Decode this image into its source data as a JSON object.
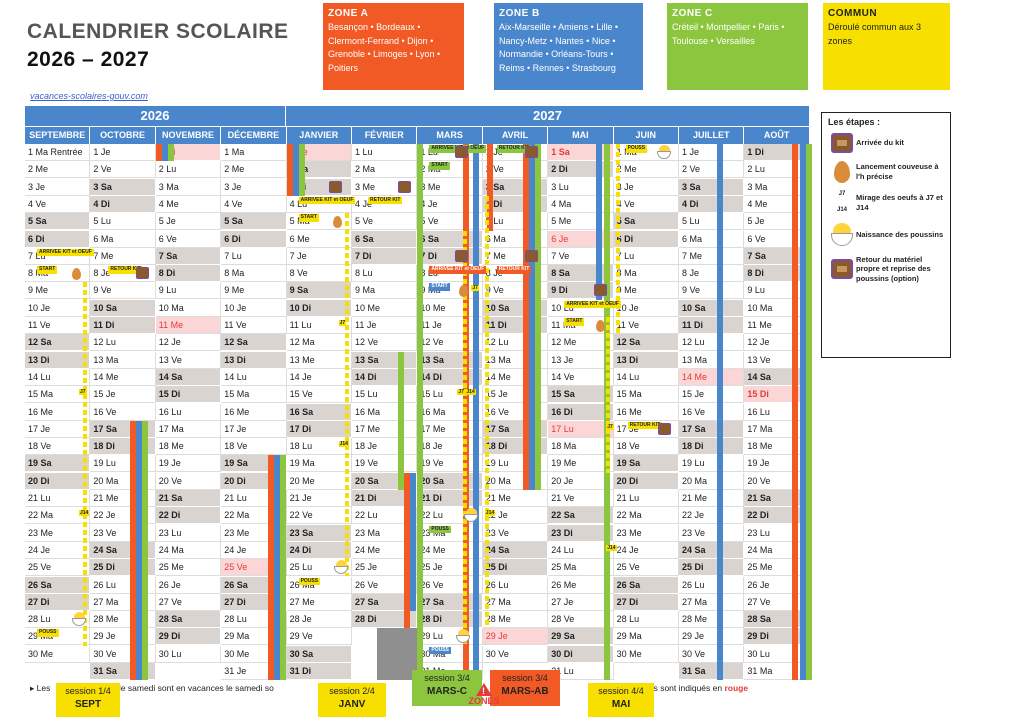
{
  "title": {
    "line1": "CALENDRIER SCOLAIRE",
    "line2": "2026 – 2027"
  },
  "source": "vacances-scolaires-gouv.com",
  "zones": [
    {
      "name": "ZONE A",
      "color": "#f15a24",
      "text": "Besançon • Bordeaux • Clermont-Ferrand • Dijon • Grenoble • Limoges • Lyon • Poitiers"
    },
    {
      "name": "ZONE B",
      "color": "#4a86cc",
      "text": "Aix-Marseille • Amiens • Lille • Nancy-Metz • Nantes • Nice • Normandie • Orléans-Tours • Reims • Rennes • Strasbourg"
    },
    {
      "name": "ZONE C",
      "color": "#8cc63f",
      "text": "Créteil • Montpellier • Paris • Toulouse • Versailles"
    },
    {
      "name": "COMMUN",
      "color": "#f7e000",
      "text": "Déroulé commun aux 3 zones"
    }
  ],
  "years": [
    "2026",
    "2027"
  ],
  "months": [
    {
      "name": "SEPTEMBRE",
      "start": "Ma",
      "days": 30
    },
    {
      "name": "OCTOBRE",
      "start": "Je",
      "days": 31
    },
    {
      "name": "NOVEMBRE",
      "start": "Di",
      "days": 30
    },
    {
      "name": "DÉCEMBRE",
      "start": "Ma",
      "days": 31
    },
    {
      "name": "JANVIER",
      "start": "Ve",
      "days": 31
    },
    {
      "name": "FÉVRIER",
      "start": "Lu",
      "days": 28
    },
    {
      "name": "MARS",
      "start": "Lu",
      "days": 31
    },
    {
      "name": "AVRIL",
      "start": "Je",
      "days": 30
    },
    {
      "name": "MAI",
      "start": "Sa",
      "days": 31
    },
    {
      "name": "JUIN",
      "start": "Ma",
      "days": 30
    },
    {
      "name": "JUILLET",
      "start": "Je",
      "days": 31
    },
    {
      "name": "AOÛT",
      "start": "Di",
      "days": 31
    }
  ],
  "holidays": [
    [
      2,
      1
    ],
    [
      2,
      11
    ],
    [
      3,
      25
    ],
    [
      4,
      1
    ],
    [
      7,
      29
    ],
    [
      8,
      1
    ],
    [
      8,
      6
    ],
    [
      8,
      17
    ],
    [
      10,
      14
    ],
    [
      11,
      15
    ]
  ],
  "rentree_label": "Rentrée",
  "legend": {
    "title": "Les étapes :",
    "items": [
      {
        "icon": "kit-box-icon",
        "text": "Arrivée du kit"
      },
      {
        "icon": "egg-icon",
        "text": "Lancement couveuse à l'h précise"
      },
      {
        "icon": "j-marks",
        "text": "Mirage des oeufs à J7 et J14",
        "j7": "J7",
        "j14": "J14"
      },
      {
        "icon": "chick-icon",
        "text": "Naissance des poussins"
      },
      {
        "icon": "kit-box-icon",
        "text": "Retour du matériel propre et reprise des poussins (option)"
      }
    ]
  },
  "tags": {
    "arrivee": "ARRIVEE KIT et OEUF",
    "start": "START",
    "retour": "RETOUR KIT",
    "pouss": "POUSS",
    "j7": "J7",
    "j14": "J14"
  },
  "footer": {
    "prefix": "Les",
    "middle": "urs le samedi sont en vacances le samedi so",
    "suffix": "jours fériés sont indiqués en",
    "red": "rouge"
  },
  "sessions": [
    {
      "label": "session 1/4",
      "name": "SEPT",
      "color": "#f7e000"
    },
    {
      "label": "session 2/4",
      "name": "JANV",
      "color": "#f7e000"
    },
    {
      "label": "session 3/4",
      "name": "MARS-C",
      "color": "#8cc63f"
    },
    {
      "label": "session 3/4",
      "name": "MARS-AB",
      "color": "#f15a24"
    },
    {
      "label": "session 4/4",
      "name": "MAI",
      "color": "#f7e000"
    }
  ],
  "zones_label": "ZONES"
}
